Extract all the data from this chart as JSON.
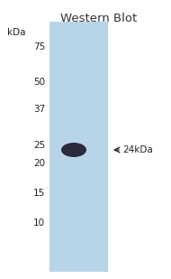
{
  "title": "Western Blot",
  "title_fontsize": 9.5,
  "title_fontweight": "normal",
  "title_color": "#333333",
  "bg_color": "#ffffff",
  "lane_color": "#b8d4e8",
  "kda_label": "kDa",
  "kda_label_fontsize": 7.5,
  "marker_ticks": [
    75,
    50,
    37,
    25,
    20,
    15,
    10
  ],
  "band_color": "#2a2a3a",
  "band_alpha": 1.0,
  "arrow_label": "≂24kDa",
  "arrow_label_fontsize": 7.5,
  "tick_fontsize": 7.5,
  "tick_color": "#222222",
  "figsize": [
    1.9,
    3.09
  ],
  "dpi": 100
}
